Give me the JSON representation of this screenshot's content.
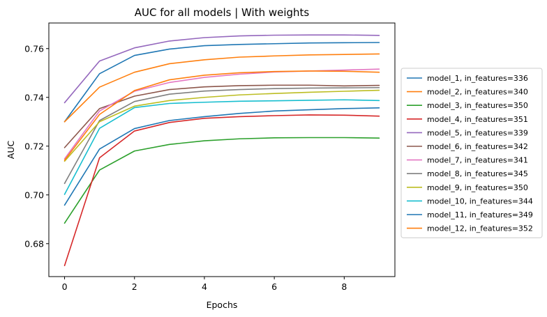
{
  "chart_data": {
    "type": "line",
    "title": "AUC for all models | With weights",
    "xlabel": "Epochs",
    "ylabel": "AUC",
    "xlim": [
      -0.45,
      9.45
    ],
    "ylim": [
      0.6665,
      0.7705
    ],
    "x": [
      0,
      1,
      2,
      3,
      4,
      5,
      6,
      7,
      8,
      9
    ],
    "xticks": [
      0,
      2,
      4,
      6,
      8
    ],
    "yticks": [
      0.68,
      0.7,
      0.72,
      0.74,
      0.76
    ],
    "ytick_labels": [
      "0.68",
      "0.70",
      "0.72",
      "0.74",
      "0.76"
    ],
    "grid": false,
    "legend_position": "outside-right",
    "series": [
      {
        "name": "model_1, in_features=336",
        "color": "#1f77b4",
        "values": [
          0.73,
          0.7497,
          0.7572,
          0.7598,
          0.7612,
          0.7617,
          0.762,
          0.7623,
          0.7624,
          0.7625
        ]
      },
      {
        "name": "model_2, in_features=340",
        "color": "#ff7f0e",
        "values": [
          0.73,
          0.7442,
          0.7503,
          0.7538,
          0.7554,
          0.7565,
          0.757,
          0.7574,
          0.7576,
          0.7578
        ]
      },
      {
        "name": "model_3, in_features=350",
        "color": "#2ca02c",
        "values": [
          0.6884,
          0.7102,
          0.718,
          0.7207,
          0.7222,
          0.723,
          0.7234,
          0.7235,
          0.7235,
          0.7233
        ]
      },
      {
        "name": "model_4, in_features=351",
        "color": "#d62728",
        "values": [
          0.671,
          0.7152,
          0.7262,
          0.7297,
          0.7314,
          0.7321,
          0.7325,
          0.7328,
          0.7327,
          0.7323
        ]
      },
      {
        "name": "model_5, in_features=339",
        "color": "#9467bd",
        "values": [
          0.7378,
          0.7549,
          0.7603,
          0.7631,
          0.7645,
          0.7652,
          0.7655,
          0.7656,
          0.7656,
          0.7654
        ]
      },
      {
        "name": "model_6, in_features=342",
        "color": "#8c564b",
        "values": [
          0.7194,
          0.7354,
          0.7405,
          0.7432,
          0.7443,
          0.7448,
          0.745,
          0.745,
          0.7447,
          0.7449
        ]
      },
      {
        "name": "model_7, in_features=341",
        "color": "#e377c2",
        "values": [
          0.7148,
          0.7344,
          0.7425,
          0.7461,
          0.7482,
          0.7495,
          0.7504,
          0.7508,
          0.7512,
          0.7516
        ]
      },
      {
        "name": "model_8, in_features=345",
        "color": "#7f7f7f",
        "values": [
          0.7047,
          0.7305,
          0.7383,
          0.7413,
          0.7426,
          0.7432,
          0.7436,
          0.7438,
          0.7439,
          0.744
        ]
      },
      {
        "name": "model_9, in_features=350",
        "color": "#bcbd22",
        "values": [
          0.7138,
          0.73,
          0.7364,
          0.7387,
          0.74,
          0.741,
          0.7416,
          0.7421,
          0.7425,
          0.7429
        ]
      },
      {
        "name": "model_10, in_features=344",
        "color": "#17becf",
        "values": [
          0.7002,
          0.7273,
          0.7358,
          0.7375,
          0.738,
          0.7384,
          0.7386,
          0.7388,
          0.739,
          0.7387
        ]
      },
      {
        "name": "model_11, in_features=349",
        "color": "#1f77b4",
        "values": [
          0.6958,
          0.7188,
          0.7272,
          0.7305,
          0.7321,
          0.7334,
          0.7344,
          0.7349,
          0.7354,
          0.7357
        ]
      },
      {
        "name": "model_12, in_features=352",
        "color": "#ff7f0e",
        "values": [
          0.7142,
          0.733,
          0.7428,
          0.7472,
          0.7491,
          0.7501,
          0.7506,
          0.7508,
          0.7507,
          0.7503
        ]
      }
    ]
  }
}
